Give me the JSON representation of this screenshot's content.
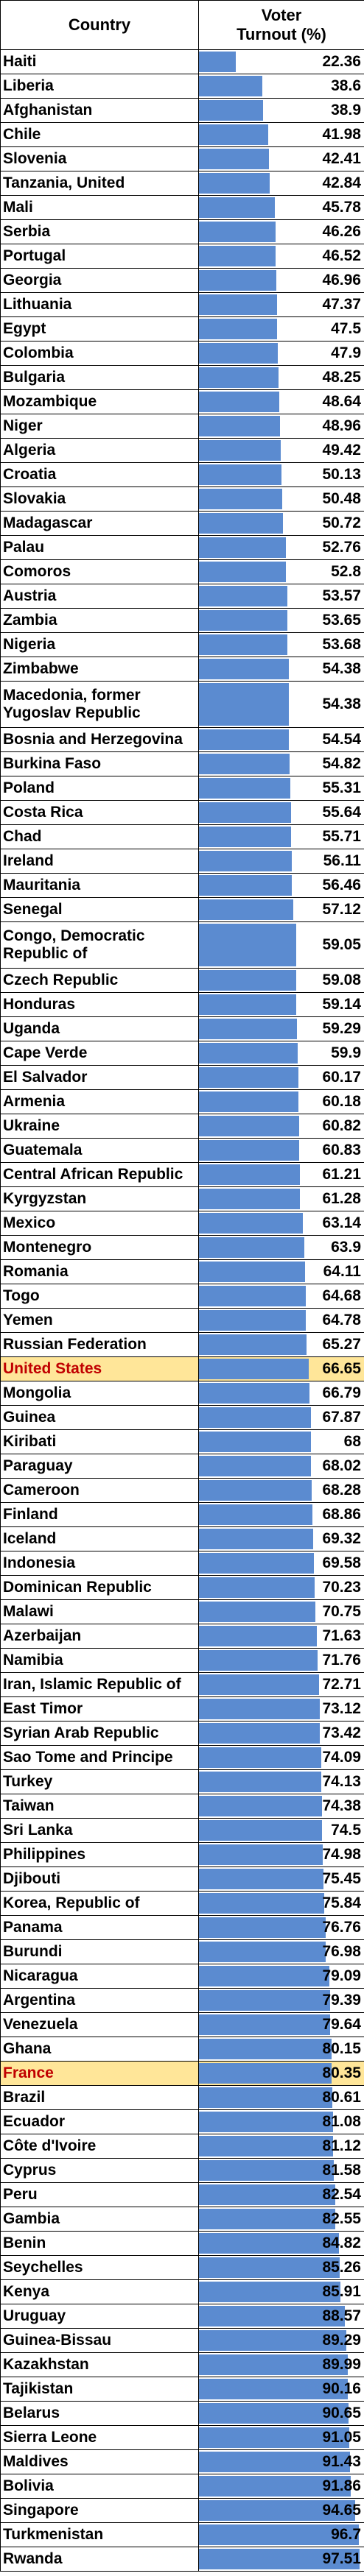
{
  "chart_data": {
    "type": "table",
    "columns": [
      "Country",
      "Voter\nTurnout (%)"
    ],
    "highlight_color": "#ffe699",
    "highlight_text_color": "#c00000",
    "bar_color": "#5b8bd0",
    "bar_range": [
      0,
      100
    ],
    "rows": [
      {
        "country": "Haiti",
        "value": 22.36
      },
      {
        "country": "Liberia",
        "value": 38.6
      },
      {
        "country": "Afghanistan",
        "value": 38.9
      },
      {
        "country": "Chile",
        "value": 41.98
      },
      {
        "country": "Slovenia",
        "value": 42.41
      },
      {
        "country": "Tanzania, United",
        "value": 42.84
      },
      {
        "country": "Mali",
        "value": 45.78
      },
      {
        "country": "Serbia",
        "value": 46.26
      },
      {
        "country": "Portugal",
        "value": 46.52
      },
      {
        "country": "Georgia",
        "value": 46.96
      },
      {
        "country": "Lithuania",
        "value": 47.37
      },
      {
        "country": "Egypt",
        "value": 47.5
      },
      {
        "country": "Colombia",
        "value": 47.9
      },
      {
        "country": "Bulgaria",
        "value": 48.25
      },
      {
        "country": "Mozambique",
        "value": 48.64
      },
      {
        "country": "Niger",
        "value": 48.96
      },
      {
        "country": "Algeria",
        "value": 49.42
      },
      {
        "country": "Croatia",
        "value": 50.13
      },
      {
        "country": "Slovakia",
        "value": 50.48
      },
      {
        "country": "Madagascar",
        "value": 50.72
      },
      {
        "country": "Palau",
        "value": 52.76
      },
      {
        "country": "Comoros",
        "value": 52.8
      },
      {
        "country": "Austria",
        "value": 53.57
      },
      {
        "country": "Zambia",
        "value": 53.65
      },
      {
        "country": "Nigeria",
        "value": 53.68
      },
      {
        "country": "Zimbabwe",
        "value": 54.38
      },
      {
        "country": "Macedonia, former\nYugoslav Republic",
        "value": 54.38
      },
      {
        "country": "Bosnia and Herzegovina",
        "value": 54.54
      },
      {
        "country": "Burkina Faso",
        "value": 54.82
      },
      {
        "country": "Poland",
        "value": 55.31
      },
      {
        "country": "Costa Rica",
        "value": 55.64
      },
      {
        "country": "Chad",
        "value": 55.71
      },
      {
        "country": "Ireland",
        "value": 56.11
      },
      {
        "country": "Mauritania",
        "value": 56.46
      },
      {
        "country": "Senegal",
        "value": 57.12
      },
      {
        "country": "Congo, Democratic\nRepublic of",
        "value": 59.05
      },
      {
        "country": "Czech Republic",
        "value": 59.08
      },
      {
        "country": "Honduras",
        "value": 59.14
      },
      {
        "country": "Uganda",
        "value": 59.29
      },
      {
        "country": "Cape Verde",
        "value": 59.9
      },
      {
        "country": "El Salvador",
        "value": 60.17
      },
      {
        "country": "Armenia",
        "value": 60.18
      },
      {
        "country": "Ukraine",
        "value": 60.82
      },
      {
        "country": "Guatemala",
        "value": 60.83
      },
      {
        "country": "Central African Republic",
        "value": 61.21
      },
      {
        "country": "Kyrgyzstan",
        "value": 61.28
      },
      {
        "country": "Mexico",
        "value": 63.14
      },
      {
        "country": "Montenegro",
        "value": 63.9
      },
      {
        "country": "Romania",
        "value": 64.11
      },
      {
        "country": "Togo",
        "value": 64.68
      },
      {
        "country": "Yemen",
        "value": 64.78
      },
      {
        "country": "Russian Federation",
        "value": 65.27
      },
      {
        "country": "United States",
        "value": 66.65,
        "highlight": true
      },
      {
        "country": "Mongolia",
        "value": 66.79
      },
      {
        "country": "Guinea",
        "value": 67.87
      },
      {
        "country": "Kiribati",
        "value": 68
      },
      {
        "country": "Paraguay",
        "value": 68.02
      },
      {
        "country": "Cameroon",
        "value": 68.28
      },
      {
        "country": "Finland",
        "value": 68.86
      },
      {
        "country": "Iceland",
        "value": 69.32
      },
      {
        "country": "Indonesia",
        "value": 69.58
      },
      {
        "country": "Dominican Republic",
        "value": 70.23
      },
      {
        "country": "Malawi",
        "value": 70.75
      },
      {
        "country": "Azerbaijan",
        "value": 71.63
      },
      {
        "country": "Namibia",
        "value": 71.76
      },
      {
        "country": "Iran, Islamic Republic of",
        "value": 72.71
      },
      {
        "country": "East Timor",
        "value": 73.12
      },
      {
        "country": "Syrian Arab Republic",
        "value": 73.42
      },
      {
        "country": "Sao Tome and Principe",
        "value": 74.09
      },
      {
        "country": "Turkey",
        "value": 74.13
      },
      {
        "country": "Taiwan",
        "value": 74.38
      },
      {
        "country": "Sri Lanka",
        "value": 74.5
      },
      {
        "country": "Philippines",
        "value": 74.98
      },
      {
        "country": "Djibouti",
        "value": 75.45
      },
      {
        "country": "Korea, Republic of",
        "value": 75.84
      },
      {
        "country": "Panama",
        "value": 76.76
      },
      {
        "country": "Burundi",
        "value": 76.98
      },
      {
        "country": "Nicaragua",
        "value": 79.09
      },
      {
        "country": "Argentina",
        "value": 79.39
      },
      {
        "country": "Venezuela",
        "value": 79.64
      },
      {
        "country": "Ghana",
        "value": 80.15
      },
      {
        "country": "France",
        "value": 80.35,
        "highlight": true
      },
      {
        "country": "Brazil",
        "value": 80.61
      },
      {
        "country": "Ecuador",
        "value": 81.08
      },
      {
        "country": "Côte d'Ivoire",
        "value": 81.12
      },
      {
        "country": "Cyprus",
        "value": 81.58
      },
      {
        "country": "Peru",
        "value": 82.54
      },
      {
        "country": "Gambia",
        "value": 82.55
      },
      {
        "country": "Benin",
        "value": 84.82
      },
      {
        "country": "Seychelles",
        "value": 85.26
      },
      {
        "country": "Kenya",
        "value": 85.91
      },
      {
        "country": "Uruguay",
        "value": 88.57
      },
      {
        "country": "Guinea-Bissau",
        "value": 89.29
      },
      {
        "country": "Kazakhstan",
        "value": 89.99
      },
      {
        "country": "Tajikistan",
        "value": 90.16
      },
      {
        "country": "Belarus",
        "value": 90.65
      },
      {
        "country": "Sierra Leone",
        "value": 91.05
      },
      {
        "country": "Maldives",
        "value": 91.43
      },
      {
        "country": "Bolivia",
        "value": 91.86
      },
      {
        "country": "Singapore",
        "value": 94.65
      },
      {
        "country": "Turkmenistan",
        "value": 96.7
      },
      {
        "country": "Rwanda",
        "value": 97.51
      }
    ]
  }
}
